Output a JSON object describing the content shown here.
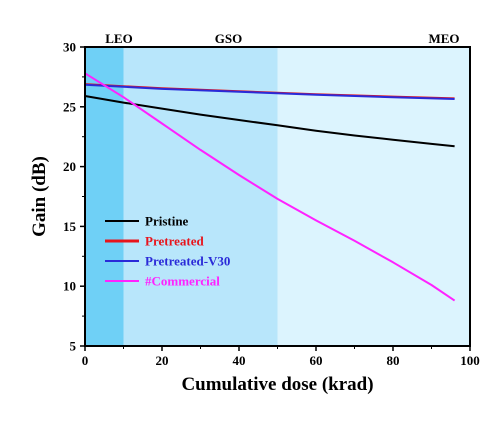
{
  "chart_data": {
    "type": "line",
    "xlabel": "Cumulative dose (krad)",
    "ylabel": "Gain (dB)",
    "xlim": [
      0,
      100
    ],
    "ylim": [
      5,
      30
    ],
    "xticks": [
      "0",
      "20",
      "40",
      "60",
      "80",
      "100"
    ],
    "yticks": [
      "5",
      "10",
      "15",
      "20",
      "25",
      "30"
    ],
    "regions": [
      {
        "label": "LEO",
        "x0": 0,
        "x1": 10,
        "color": "#6fd0f6"
      },
      {
        "label": "GSO",
        "x0": 10,
        "x1": 50,
        "color": "#b8e6fb"
      },
      {
        "label": "MEO",
        "x0": 50,
        "x1": 100,
        "color": "#dcf4fe"
      }
    ],
    "series": [
      {
        "name": "Pristine",
        "color": "#000000",
        "x": [
          0,
          10,
          20,
          30,
          40,
          50,
          60,
          70,
          80,
          90,
          96
        ],
        "y": [
          25.9,
          25.35,
          24.85,
          24.35,
          23.9,
          23.45,
          23.0,
          22.6,
          22.25,
          21.9,
          21.7
        ]
      },
      {
        "name": "Pretreated",
        "color": "#e8141b",
        "x": [
          0,
          20,
          40,
          60,
          80,
          96
        ],
        "y": [
          26.9,
          26.55,
          26.3,
          26.05,
          25.85,
          25.7
        ]
      },
      {
        "name": "Pretreated-V30",
        "color": "#2a2ad8",
        "x": [
          0,
          20,
          40,
          60,
          80,
          96
        ],
        "y": [
          26.85,
          26.5,
          26.25,
          26.0,
          25.8,
          25.65
        ]
      },
      {
        "name": "#Commercial",
        "color": "#ff22ff",
        "x": [
          0,
          10,
          20,
          30,
          40,
          50,
          60,
          70,
          80,
          90,
          96
        ],
        "y": [
          27.8,
          25.8,
          23.6,
          21.4,
          19.3,
          17.3,
          15.5,
          13.8,
          12.0,
          10.1,
          8.8
        ]
      }
    ],
    "legend_position": "bottom-left"
  }
}
